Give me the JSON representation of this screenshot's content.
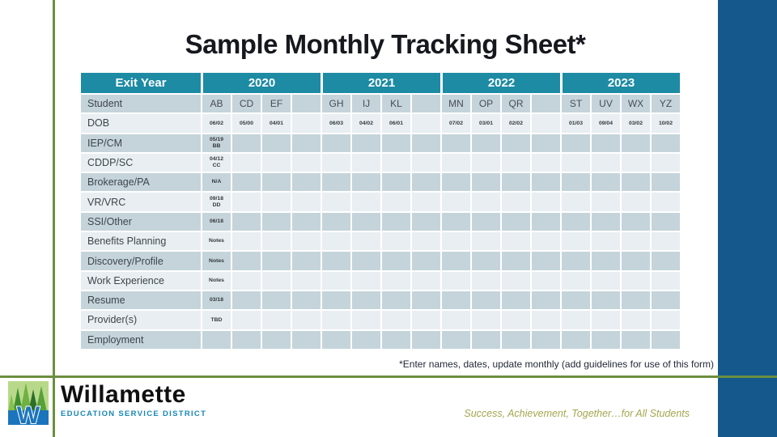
{
  "slide": {
    "title": "Sample Monthly Tracking Sheet*",
    "footnote": "*Enter names, dates, update monthly (add guidelines for use of this form)",
    "tagline": "Success, Achievement, Together…for All Students"
  },
  "logo": {
    "wordmark": "Willamette",
    "subtitle": "EDUCATION SERVICE DISTRICT",
    "icon": "willamette-esd-trees-w-logo",
    "icon_letter": "W"
  },
  "colors": {
    "header_teal": "#1d8ba4",
    "row_dark": "#c5d4db",
    "row_light": "#e8eef1",
    "accent_olive": "#6d8f3e",
    "right_bar_blue": "#15598c",
    "logo_teal": "#1787b8",
    "tagline_olive": "#a3a74d"
  },
  "table": {
    "header_label": "Exit Year",
    "years": [
      "2020",
      "2021",
      "2022",
      "2023"
    ],
    "rows": [
      {
        "label": "Student",
        "style": "names",
        "values": [
          "AB",
          "CD",
          "EF",
          "",
          "GH",
          "IJ",
          "KL",
          "",
          "MN",
          "OP",
          "QR",
          "",
          "ST",
          "UV",
          "WX",
          "YZ"
        ]
      },
      {
        "label": "DOB",
        "style": "dates",
        "values": [
          "06/02",
          "05/00",
          "04/01",
          "",
          "06/03",
          "04/02",
          "06/01",
          "",
          "07/02",
          "03/01",
          "02/02",
          "",
          "01/03",
          "09/04",
          "03/02",
          "10/02"
        ]
      },
      {
        "label": "IEP/CM",
        "style": "dates",
        "values": [
          "05/19\nBB",
          "",
          "",
          "",
          "",
          "",
          "",
          "",
          "",
          "",
          "",
          "",
          "",
          "",
          "",
          ""
        ]
      },
      {
        "label": "CDDP/SC",
        "style": "dates",
        "values": [
          "04/12\nCC",
          "",
          "",
          "",
          "",
          "",
          "",
          "",
          "",
          "",
          "",
          "",
          "",
          "",
          "",
          ""
        ]
      },
      {
        "label": "Brokerage/PA",
        "style": "dates",
        "values": [
          "N/A",
          "",
          "",
          "",
          "",
          "",
          "",
          "",
          "",
          "",
          "",
          "",
          "",
          "",
          "",
          ""
        ]
      },
      {
        "label": "VR/VRC",
        "style": "dates",
        "values": [
          "09/18\nDD",
          "",
          "",
          "",
          "",
          "",
          "",
          "",
          "",
          "",
          "",
          "",
          "",
          "",
          "",
          ""
        ]
      },
      {
        "label": "SSI/Other",
        "style": "dates",
        "values": [
          "06/18",
          "",
          "",
          "",
          "",
          "",
          "",
          "",
          "",
          "",
          "",
          "",
          "",
          "",
          "",
          ""
        ]
      },
      {
        "label": "Benefits Planning",
        "style": "dates",
        "values": [
          "Notes",
          "",
          "",
          "",
          "",
          "",
          "",
          "",
          "",
          "",
          "",
          "",
          "",
          "",
          "",
          ""
        ]
      },
      {
        "label": "Discovery/Profile",
        "style": "dates",
        "values": [
          "Notes",
          "",
          "",
          "",
          "",
          "",
          "",
          "",
          "",
          "",
          "",
          "",
          "",
          "",
          "",
          ""
        ]
      },
      {
        "label": "Work Experience",
        "style": "dates",
        "values": [
          "Notes",
          "",
          "",
          "",
          "",
          "",
          "",
          "",
          "",
          "",
          "",
          "",
          "",
          "",
          "",
          ""
        ]
      },
      {
        "label": "Resume",
        "style": "dates",
        "values": [
          "03/18",
          "",
          "",
          "",
          "",
          "",
          "",
          "",
          "",
          "",
          "",
          "",
          "",
          "",
          "",
          ""
        ]
      },
      {
        "label": "Provider(s)",
        "style": "dates",
        "values": [
          "TBD",
          "",
          "",
          "",
          "",
          "",
          "",
          "",
          "",
          "",
          "",
          "",
          "",
          "",
          "",
          ""
        ]
      },
      {
        "label": "Employment",
        "style": "dates",
        "values": [
          "",
          "",
          "",
          "",
          "",
          "",
          "",
          "",
          "",
          "",
          "",
          "",
          "",
          "",
          "",
          ""
        ]
      }
    ]
  }
}
